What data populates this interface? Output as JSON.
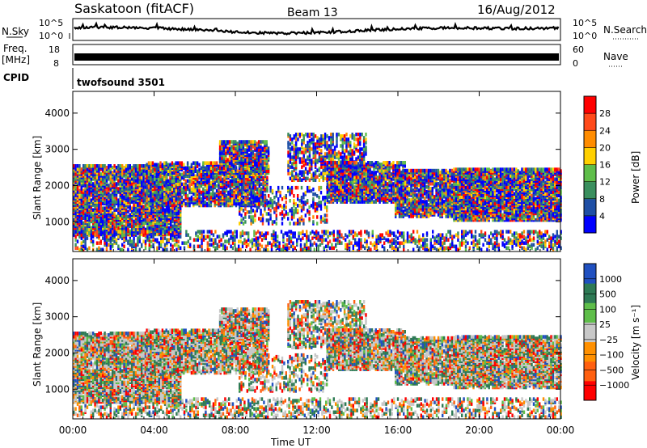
{
  "header": {
    "station": "Saskatoon (fitACF)",
    "beam": "Beam 13",
    "date": "16/Aug/2012"
  },
  "noise_panel": {
    "left_label": "N.Sky",
    "left_ticks": [
      "10^5",
      "10^0"
    ],
    "right_label": "N.Search",
    "right_ticks": [
      "10^5",
      "10^0"
    ]
  },
  "freq_panel": {
    "left_label_1": "Freq.",
    "left_label_2": "[MHz]",
    "left_ticks": [
      "18",
      "8"
    ],
    "right_label": "Nave",
    "right_ticks": [
      "60",
      "0"
    ]
  },
  "cpid_panel": {
    "label": "CPID",
    "program": "twofsound 3501"
  },
  "colors": {
    "power_scale": [
      "#0000ff",
      "#1f4fa5",
      "#3a8f5e",
      "#5fbe4a",
      "#ffd000",
      "#ff8c00",
      "#ff4a1a",
      "#ff0000"
    ],
    "velocity_scale": [
      "#2050c0",
      "#2e7a55",
      "#5fbe4a",
      "#c8c8c8",
      "#ff9000",
      "#ff6010",
      "#ff0000"
    ],
    "trace": "#000000"
  },
  "chart_data": [
    {
      "type": "heatmap",
      "title": "",
      "xlabel": "",
      "ylabel": "Slant Range [km]",
      "x_ticks": [
        "00:00",
        "04:00",
        "08:00",
        "12:00",
        "16:00",
        "20:00",
        "00:00"
      ],
      "y_ticks": [
        "1000",
        "2000",
        "3000",
        "4000"
      ],
      "ylim": [
        180,
        4600
      ],
      "colorbar": {
        "label": "Power [dB]",
        "ticks": [
          "4",
          "8",
          "12",
          "16",
          "20",
          "24",
          "28"
        ],
        "range": [
          0,
          32
        ]
      }
    },
    {
      "type": "heatmap",
      "title": "",
      "xlabel": "Time UT",
      "ylabel": "Slant Range [km]",
      "x_ticks": [
        "00:00",
        "04:00",
        "08:00",
        "12:00",
        "16:00",
        "20:00",
        "00:00"
      ],
      "y_ticks": [
        "1000",
        "2000",
        "3000",
        "4000"
      ],
      "ylim": [
        180,
        4600
      ],
      "colorbar": {
        "label": "Velocity [m s⁻¹]",
        "ticks": [
          "1000",
          "500",
          "100",
          "25",
          "−25",
          "−100",
          "−500",
          "−1000"
        ]
      }
    }
  ]
}
